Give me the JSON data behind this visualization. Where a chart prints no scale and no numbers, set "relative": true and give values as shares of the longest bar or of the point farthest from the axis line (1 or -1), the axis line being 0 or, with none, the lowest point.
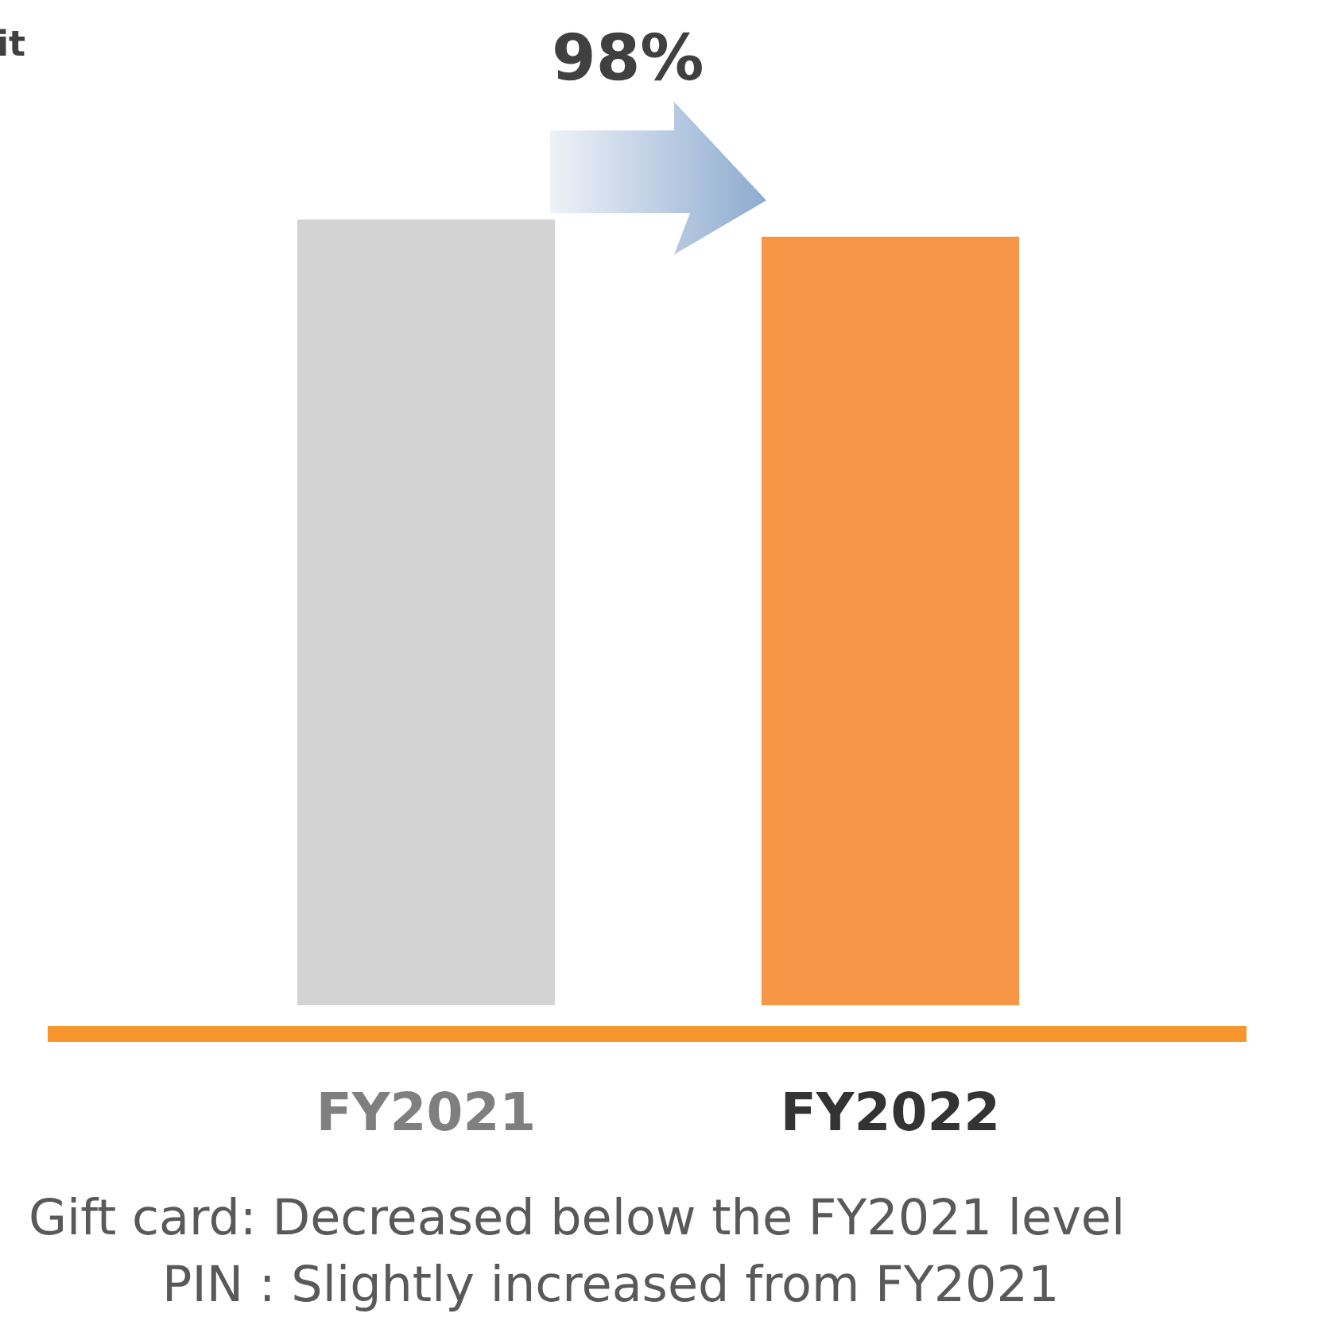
{
  "chart_data": {
    "type": "bar",
    "categories": [
      "FY2021",
      "FY2022"
    ],
    "values": [
      1,
      0.978
    ],
    "colors": [
      "#d3d3d3",
      "#f79646"
    ],
    "relative": true,
    "annotations": [
      "98%",
      "Gift card: Decreased below the FY2021 level",
      "PIN : Slightly increased from FY2021",
      "it"
    ]
  }
}
